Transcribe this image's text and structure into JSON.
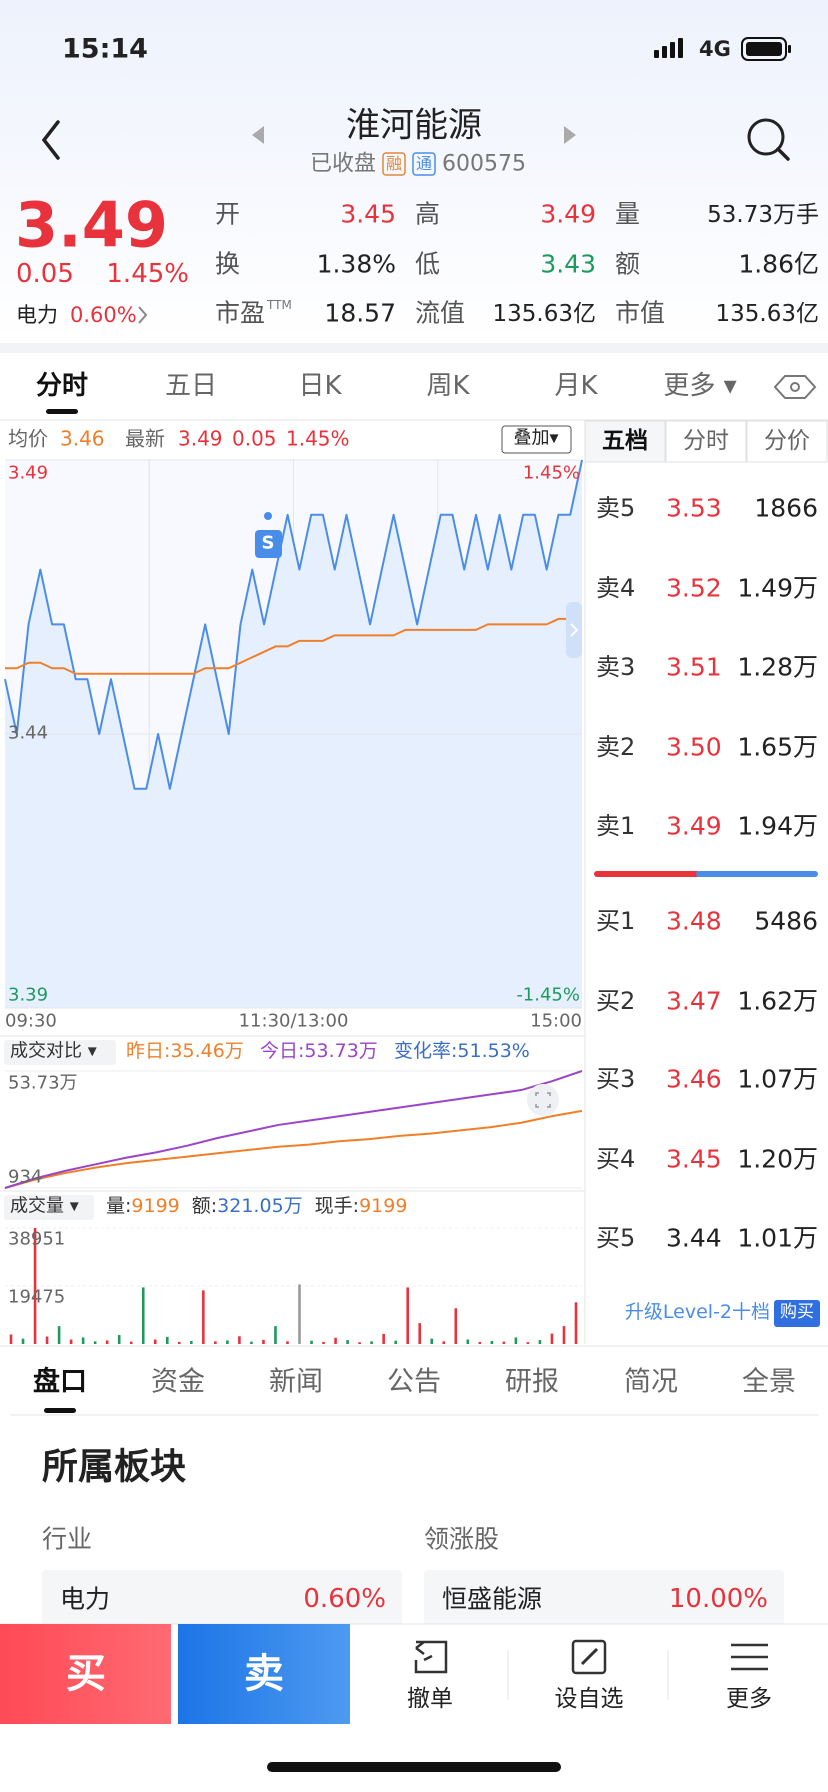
{
  "status": {
    "time": "15:14",
    "network": "4G"
  },
  "header": {
    "title": "淮河能源",
    "subtitle": "已收盘",
    "badges": [
      "融",
      "通"
    ],
    "code": "600575"
  },
  "quote": {
    "price": "3.49",
    "change": "0.05",
    "change_pct": "1.45%",
    "sector": "电力",
    "sector_pct": "0.60%"
  },
  "stats": [
    {
      "label": "开",
      "value": "3.45",
      "color": "#e8333d"
    },
    {
      "label": "高",
      "value": "3.49",
      "color": "#e8333d"
    },
    {
      "label": "量",
      "value": "53.73万手",
      "color": "#222222"
    },
    {
      "label": "换",
      "value": "1.38%",
      "color": "#222222"
    },
    {
      "label": "低",
      "value": "3.43",
      "color": "#1e9a5c"
    },
    {
      "label": "额",
      "value": "1.86亿",
      "color": "#222222"
    },
    {
      "label": "市盈",
      "sup": "TTM",
      "value": "18.57",
      "color": "#222222"
    },
    {
      "label": "流值",
      "value": "135.63亿",
      "color": "#222222"
    },
    {
      "label": "市值",
      "value": "135.63亿",
      "color": "#222222"
    }
  ],
  "chart_tabs": [
    "分时",
    "五日",
    "日K",
    "周K",
    "月K",
    "更多 ▾"
  ],
  "info": {
    "avg_label": "均价",
    "avg": "3.46",
    "latest_label": "最新",
    "latest": "3.49",
    "change": "0.05",
    "change_pct": "1.45%",
    "overlay": "叠加▾"
  },
  "price_chart": {
    "ylim": [
      3.39,
      3.49
    ],
    "yticks": [
      3.49,
      3.44,
      3.39
    ],
    "pct_labels": [
      "1.45%",
      "-1.45%"
    ],
    "x_labels": [
      "09:30",
      "11:30/13:00",
      "15:00"
    ],
    "marker": "S",
    "series": [
      {
        "name": "price",
        "color": "#4a8de8",
        "values": [
          3.45,
          3.44,
          3.46,
          3.47,
          3.46,
          3.46,
          3.45,
          3.45,
          3.44,
          3.45,
          3.44,
          3.43,
          3.43,
          3.44,
          3.43,
          3.44,
          3.45,
          3.46,
          3.45,
          3.44,
          3.46,
          3.47,
          3.46,
          3.47,
          3.48,
          3.47,
          3.48,
          3.48,
          3.47,
          3.48,
          3.47,
          3.46,
          3.47,
          3.48,
          3.47,
          3.46,
          3.47,
          3.48,
          3.48,
          3.47,
          3.48,
          3.47,
          3.48,
          3.47,
          3.48,
          3.48,
          3.47,
          3.48,
          3.48,
          3.49
        ]
      },
      {
        "name": "avg",
        "color": "#f07f2a",
        "values": [
          3.452,
          3.452,
          3.453,
          3.453,
          3.452,
          3.452,
          3.451,
          3.451,
          3.451,
          3.451,
          3.451,
          3.451,
          3.451,
          3.451,
          3.451,
          3.451,
          3.451,
          3.452,
          3.452,
          3.452,
          3.453,
          3.454,
          3.455,
          3.456,
          3.456,
          3.457,
          3.457,
          3.457,
          3.458,
          3.458,
          3.458,
          3.458,
          3.458,
          3.458,
          3.459,
          3.459,
          3.459,
          3.459,
          3.459,
          3.459,
          3.459,
          3.46,
          3.46,
          3.46,
          3.46,
          3.46,
          3.46,
          3.461,
          3.461,
          3.461
        ]
      }
    ]
  },
  "compare_chart": {
    "label": "成交对比 ▾",
    "yesterday": "昨日:35.46万",
    "today": "今日:53.73万",
    "change_rate": "变化率:51.53%",
    "ylim": [
      934,
      537300
    ],
    "yticks": [
      {
        "value": 537300,
        "label": "53.73万"
      },
      934
    ],
    "series": [
      {
        "name": "yesterday",
        "color": "#f07f2a",
        "values": [
          934,
          40000,
          70000,
          95000,
          115000,
          130000,
          145000,
          160000,
          175000,
          190000,
          200000,
          215000,
          225000,
          240000,
          250000,
          265000,
          280000,
          300000,
          330000,
          354600
        ]
      },
      {
        "name": "today",
        "color": "#9b45c9",
        "values": [
          934,
          45000,
          80000,
          110000,
          140000,
          165000,
          195000,
          230000,
          260000,
          290000,
          310000,
          330000,
          350000,
          370000,
          390000,
          410000,
          430000,
          450000,
          490000,
          537300
        ]
      }
    ]
  },
  "volume_chart": {
    "label": "成交量 ▾",
    "items": [
      {
        "label": "量:",
        "value": "9199",
        "color": "#f07f2a"
      },
      {
        "label": "额:",
        "value": "321.05万",
        "color": "#3a6fc4"
      },
      {
        "label": "现手:",
        "value": "9199",
        "color": "#f07f2a"
      }
    ],
    "ylim": [
      0,
      38951
    ],
    "yticks": [
      38951,
      19475
    ],
    "values": [
      3200,
      1800,
      38951,
      2500,
      6000,
      1500,
      2200,
      900,
      1200,
      3000,
      800,
      19000,
      1500,
      2400,
      700,
      1000,
      18000,
      900,
      1200,
      2600,
      800,
      1400,
      6000,
      900,
      20000,
      1100,
      700,
      2100,
      1300,
      600,
      900,
      3400,
      1100,
      19000,
      7000,
      1800,
      900,
      12000,
      1500,
      700,
      1000,
      800,
      2200,
      600,
      1300,
      3500,
      6000,
      14000
    ],
    "colors": [
      "#e8333d",
      "#1e9a5c",
      "#e8333d",
      "#e8333d",
      "#1e9a5c",
      "#e8333d",
      "#1e9a5c",
      "#1e9a5c",
      "#e8333d",
      "#1e9a5c",
      "#e8333d",
      "#1e9a5c",
      "#e8333d",
      "#1e9a5c",
      "#e8333d",
      "#1e9a5c",
      "#e8333d",
      "#e8333d",
      "#1e9a5c",
      "#e8333d",
      "#1e9a5c",
      "#e8333d",
      "#1e9a5c",
      "#e8333d",
      "#999999",
      "#1e9a5c",
      "#e8333d",
      "#e8333d",
      "#1e9a5c",
      "#e8333d",
      "#1e9a5c",
      "#e8333d",
      "#1e9a5c",
      "#e8333d",
      "#e8333d",
      "#1e9a5c",
      "#e8333d",
      "#e8333d",
      "#1e9a5c",
      "#e8333d",
      "#1e9a5c",
      "#e8333d",
      "#1e9a5c",
      "#e8333d",
      "#1e9a5c",
      "#e8333d",
      "#e8333d",
      "#e8333d"
    ]
  },
  "order_book": {
    "tabs": [
      "五档",
      "分时",
      "分价"
    ],
    "sell": [
      {
        "label": "卖5",
        "price": "3.53",
        "volume": "1866",
        "color": "#e8333d"
      },
      {
        "label": "卖4",
        "price": "3.52",
        "volume": "1.49万",
        "color": "#e8333d"
      },
      {
        "label": "卖3",
        "price": "3.51",
        "volume": "1.28万",
        "color": "#e8333d"
      },
      {
        "label": "卖2",
        "price": "3.50",
        "volume": "1.65万",
        "color": "#e8333d"
      },
      {
        "label": "卖1",
        "price": "3.49",
        "volume": "1.94万",
        "color": "#e8333d"
      }
    ],
    "buy": [
      {
        "label": "买1",
        "price": "3.48",
        "volume": "5486",
        "color": "#e8333d"
      },
      {
        "label": "买2",
        "price": "3.47",
        "volume": "1.62万",
        "color": "#e8333d"
      },
      {
        "label": "买3",
        "price": "3.46",
        "volume": "1.07万",
        "color": "#e8333d"
      },
      {
        "label": "买4",
        "price": "3.45",
        "volume": "1.20万",
        "color": "#e8333d"
      },
      {
        "label": "买5",
        "price": "3.44",
        "volume": "1.01万",
        "color": "#222222"
      }
    ],
    "upgrade": "升级Level-2十档",
    "purchase": "购买"
  },
  "info_tabs": [
    "盘口",
    "资金",
    "新闻",
    "公告",
    "研报",
    "简况",
    "全景"
  ],
  "sector_section": {
    "title": "所属板块",
    "industry_label": "行业",
    "leader_label": "领涨股",
    "industry": {
      "name": "电力",
      "pct": "0.60%"
    },
    "leader": {
      "name": "恒盛能源",
      "pct": "10.00%"
    }
  },
  "actions": {
    "buy": "买",
    "sell": "卖",
    "items": [
      "撤单",
      "设自选",
      "更多"
    ]
  }
}
